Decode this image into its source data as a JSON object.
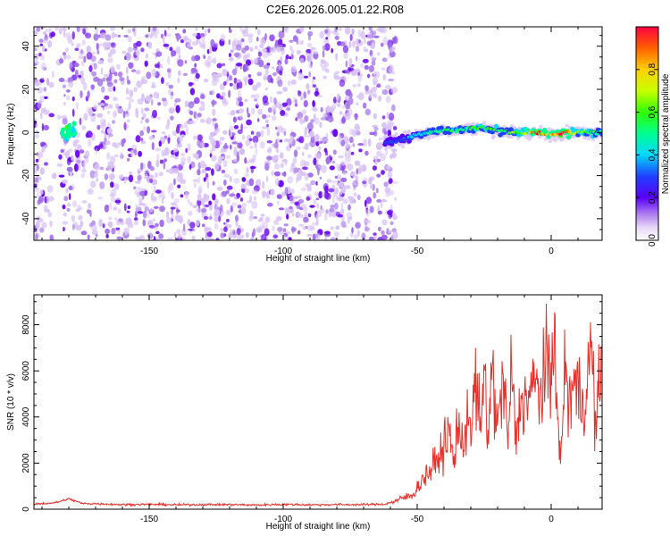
{
  "title": "C2E6.2026.005.01.22.R08",
  "colors": {
    "snr_line": "#e8302a",
    "axis": "#000000",
    "scatter_light": "#d9c4f5",
    "scatter_mid": "#a06ee8",
    "scatter_dark": "#6a0af0"
  },
  "chart_data": [
    {
      "id": "spectrogram",
      "type": "heatmap",
      "title": "C2E6.2026.005.01.22.R08",
      "xlabel": "Height of straight line (km)",
      "ylabel": "Frequency (Hz)",
      "xlim": [
        -193,
        19
      ],
      "ylim": [
        -50,
        49
      ],
      "xticks": [
        -150,
        -100,
        -50,
        0
      ],
      "xtick_labels": [
        "-150",
        "-100",
        "-50",
        "0"
      ],
      "yticks": [
        -40,
        -20,
        0,
        20,
        40
      ],
      "ytick_labels": [
        "-40",
        "-20",
        "0",
        "20",
        "40"
      ],
      "noise_region_x": [
        -193,
        -58
      ],
      "signal_track": {
        "x": [
          -62,
          -55,
          -50,
          -45,
          -40,
          -35,
          -30,
          -25,
          -20,
          -15,
          -10,
          -5,
          0,
          5,
          10,
          15,
          19
        ],
        "y": [
          -5,
          -3,
          -1,
          0,
          1,
          1,
          2,
          2,
          1,
          0,
          0,
          0,
          -1,
          0,
          0,
          0,
          0
        ],
        "amplitude": [
          0.2,
          0.3,
          0.35,
          0.4,
          0.45,
          0.5,
          0.5,
          0.55,
          0.5,
          0.55,
          0.65,
          0.95,
          0.7,
          0.95,
          0.6,
          0.5,
          0.45
        ]
      },
      "low_height_feature": {
        "x": -180,
        "y": 1,
        "amplitude": 0.45
      },
      "colorbar": {
        "label": "Normalized spectral amplitude",
        "range": [
          0,
          1
        ],
        "ticks": [
          0.0,
          0.2,
          0.4,
          0.6,
          0.8
        ],
        "tick_labels": [
          "0.0",
          "0.2",
          "0.4",
          "0.6",
          "0.8"
        ]
      }
    },
    {
      "id": "snr",
      "type": "line",
      "xlabel": "Height of straight line (km)",
      "ylabel": "SNR (10 * v/v)",
      "xlim": [
        -193,
        19
      ],
      "ylim": [
        0,
        9300
      ],
      "xticks": [
        -150,
        -100,
        -50,
        0
      ],
      "xtick_labels": [
        "-150",
        "-100",
        "-50",
        "0"
      ],
      "yticks": [
        0,
        2000,
        4000,
        6000,
        8000
      ],
      "ytick_labels": [
        "0",
        "2000",
        "4000",
        "6000",
        "8000"
      ],
      "series": [
        {
          "name": "SNR",
          "x": [
            -193,
            -185,
            -180,
            -175,
            -170,
            -160,
            -150,
            -140,
            -130,
            -120,
            -110,
            -100,
            -90,
            -80,
            -70,
            -62,
            -58,
            -55,
            -52,
            -50,
            -48,
            -45,
            -42,
            -40,
            -38,
            -36,
            -35,
            -33,
            -31,
            -30,
            -28,
            -26,
            -25,
            -24,
            -22,
            -20,
            -18,
            -16,
            -15,
            -13,
            -11,
            -10,
            -8,
            -6,
            -5,
            -4,
            -2,
            0,
            1,
            2,
            3,
            4,
            5,
            6,
            8,
            10,
            12,
            14,
            15,
            16,
            17,
            18,
            19
          ],
          "values": [
            220,
            280,
            450,
            250,
            240,
            200,
            210,
            190,
            200,
            200,
            180,
            210,
            190,
            200,
            200,
            220,
            350,
            500,
            600,
            900,
            1300,
            1700,
            2200,
            2800,
            3300,
            1800,
            4200,
            2300,
            4800,
            3200,
            5600,
            3000,
            7000,
            2700,
            6100,
            3400,
            5800,
            2800,
            6000,
            3000,
            5100,
            4700,
            5000,
            5300,
            5400,
            5000,
            6000,
            5700,
            9300,
            4200,
            2800,
            2300,
            6800,
            4600,
            5400,
            5200,
            4600,
            5900,
            7400,
            4500,
            3500,
            5600,
            6700
          ]
        }
      ]
    }
  ]
}
